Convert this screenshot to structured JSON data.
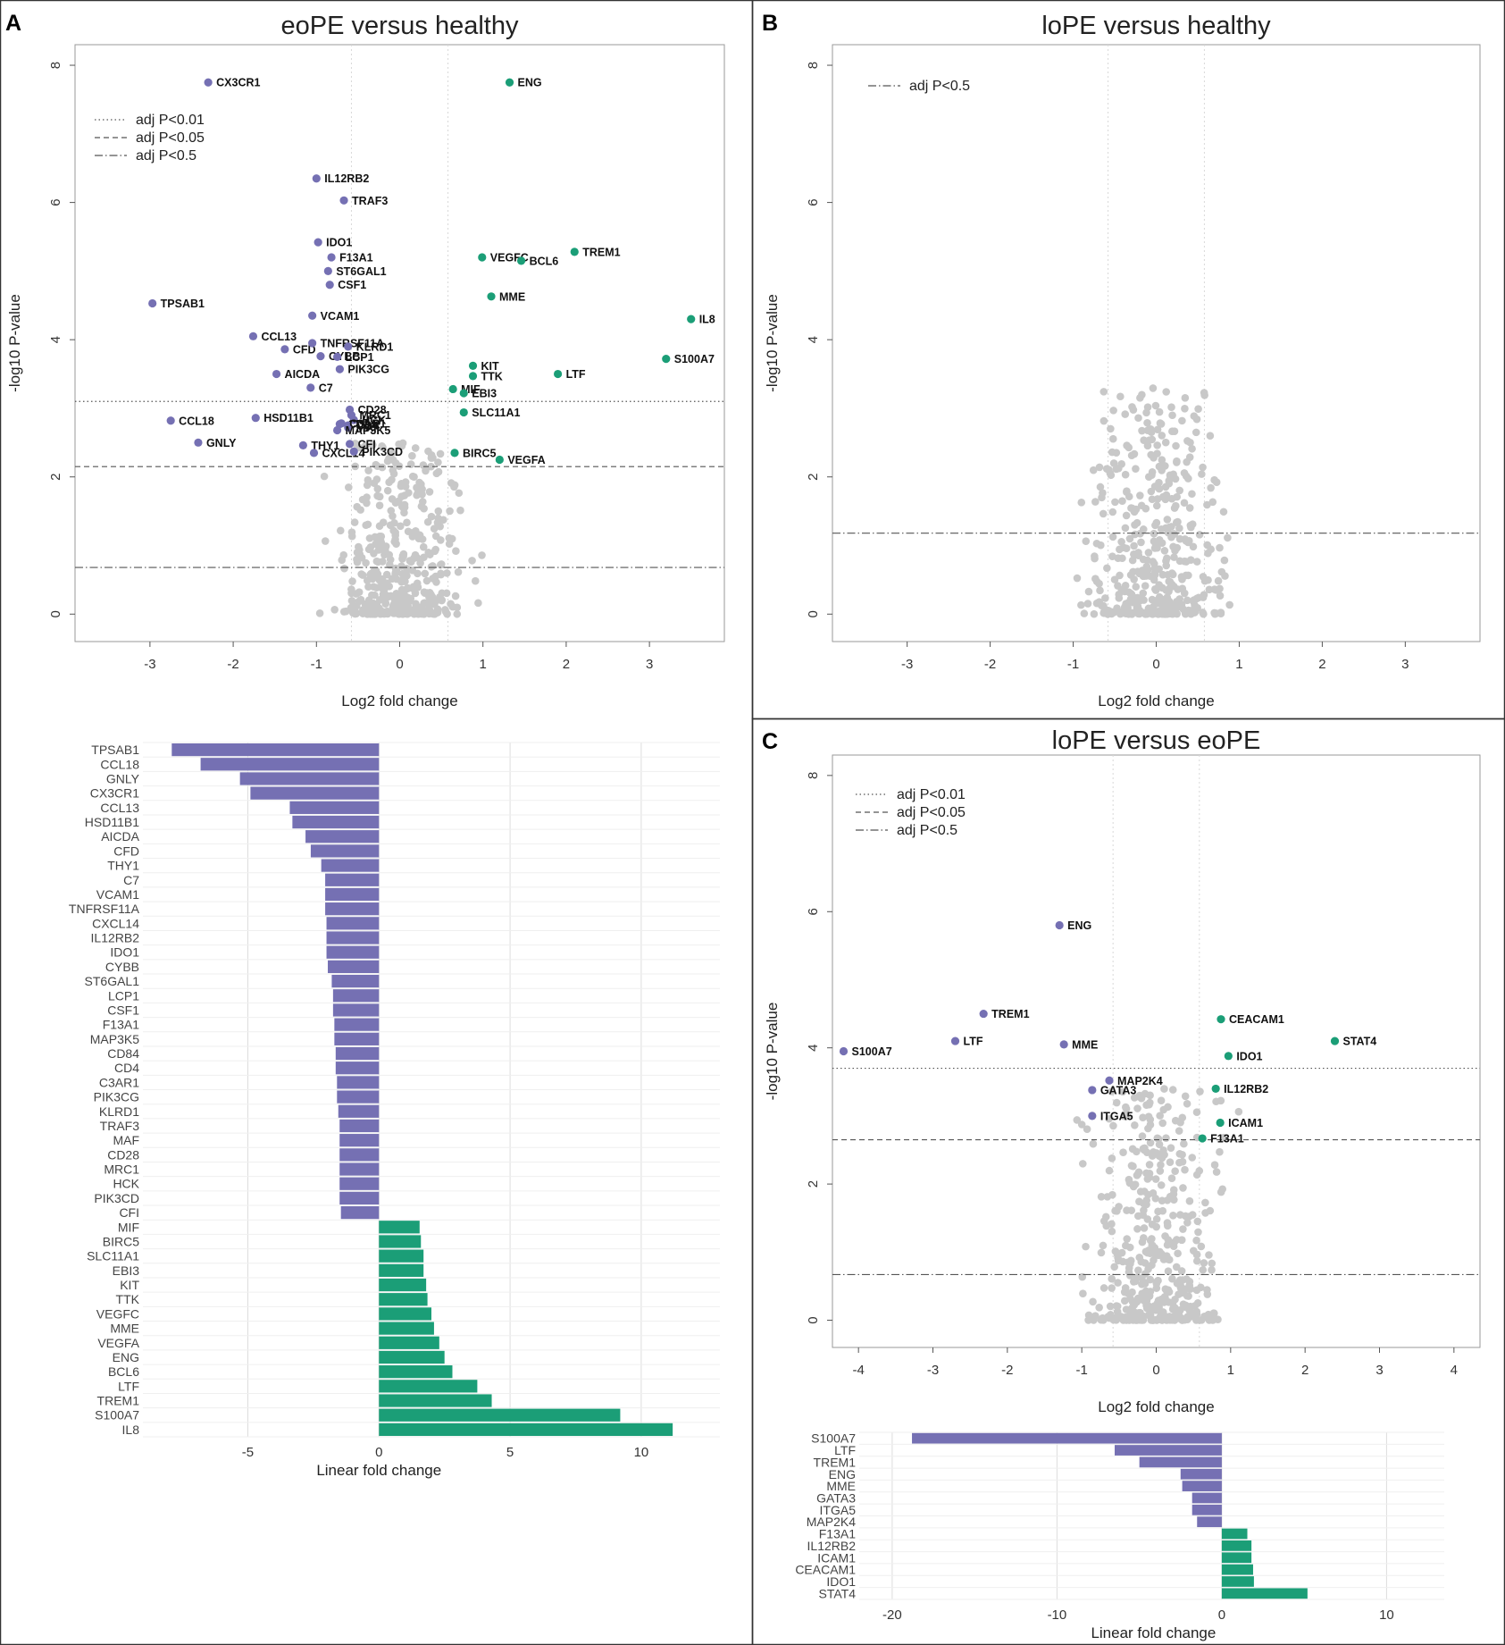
{
  "colors": {
    "down": "#7570b3",
    "up": "#1b9e77",
    "ns": "#c8c8c8",
    "panel_border": "#333333",
    "grid": "#dddddd"
  },
  "panel_letters": {
    "A": "A",
    "B": "B",
    "C": "C"
  },
  "chart_data": [
    {
      "id": "A_volcano",
      "type": "scatter",
      "title": "eoPE versus healthy",
      "xlabel": "Log2 fold change",
      "ylabel": "-log10 P-value",
      "xlim": [
        -3.9,
        3.9
      ],
      "ylim": [
        -0.4,
        8.3
      ],
      "xticks": [
        -3,
        -2,
        -1,
        0,
        1,
        2,
        3
      ],
      "yticks": [
        0,
        2,
        4,
        6,
        8
      ],
      "thresholds": [
        {
          "label": "adj P<0.01",
          "y": 3.1,
          "style": "dotted"
        },
        {
          "label": "adj P<0.05",
          "y": 2.15,
          "style": "dashed"
        },
        {
          "label": "adj P<0.5",
          "y": 0.68,
          "style": "dashdot"
        }
      ],
      "vlines": [
        -0.58,
        0.58
      ],
      "points": [
        {
          "gene": "CX3CR1",
          "x": -2.3,
          "y": 7.75,
          "dir": "down"
        },
        {
          "gene": "IL12RB2",
          "x": -1.0,
          "y": 6.35,
          "dir": "down"
        },
        {
          "gene": "TRAF3",
          "x": -0.67,
          "y": 6.03,
          "dir": "down"
        },
        {
          "gene": "IDO1",
          "x": -0.98,
          "y": 5.42,
          "dir": "down"
        },
        {
          "gene": "F13A1",
          "x": -0.82,
          "y": 5.2,
          "dir": "down"
        },
        {
          "gene": "ST6GAL1",
          "x": -0.86,
          "y": 5.0,
          "dir": "down"
        },
        {
          "gene": "CSF1",
          "x": -0.84,
          "y": 4.8,
          "dir": "down"
        },
        {
          "gene": "TPSAB1",
          "x": -2.97,
          "y": 4.53,
          "dir": "down"
        },
        {
          "gene": "VCAM1",
          "x": -1.05,
          "y": 4.35,
          "dir": "down"
        },
        {
          "gene": "CCL13",
          "x": -1.76,
          "y": 4.05,
          "dir": "down"
        },
        {
          "gene": "CFD",
          "x": -1.38,
          "y": 3.86,
          "dir": "down"
        },
        {
          "gene": "TNFRSF11A",
          "x": -1.05,
          "y": 3.95,
          "dir": "down"
        },
        {
          "gene": "CYBB",
          "x": -0.95,
          "y": 3.76,
          "dir": "down"
        },
        {
          "gene": "KLRD1",
          "x": -0.62,
          "y": 3.9,
          "dir": "down"
        },
        {
          "gene": "LCP1",
          "x": -0.75,
          "y": 3.75,
          "dir": "down"
        },
        {
          "gene": "PIK3CG",
          "x": -0.72,
          "y": 3.57,
          "dir": "down"
        },
        {
          "gene": "AICDA",
          "x": -1.48,
          "y": 3.5,
          "dir": "down"
        },
        {
          "gene": "C7",
          "x": -1.07,
          "y": 3.3,
          "dir": "down"
        },
        {
          "gene": "CD28",
          "x": -0.6,
          "y": 2.98,
          "dir": "down"
        },
        {
          "gene": "MRC1",
          "x": -0.58,
          "y": 2.9,
          "dir": "down"
        },
        {
          "gene": "HCK",
          "x": -0.55,
          "y": 2.83,
          "dir": "down"
        },
        {
          "gene": "CCL18",
          "x": -2.75,
          "y": 2.82,
          "dir": "down"
        },
        {
          "gene": "HSD11B1",
          "x": -1.73,
          "y": 2.86,
          "dir": "down"
        },
        {
          "gene": "CD84",
          "x": -0.72,
          "y": 2.77,
          "dir": "down"
        },
        {
          "gene": "CD4",
          "x": -0.62,
          "y": 2.75,
          "dir": "down"
        },
        {
          "gene": "MAF",
          "x": -0.62,
          "y": 2.72,
          "dir": "down"
        },
        {
          "gene": "MAP3K5",
          "x": -0.75,
          "y": 2.68,
          "dir": "down"
        },
        {
          "gene": "C3AR1",
          "x": -0.7,
          "y": 2.78,
          "dir": "down"
        },
        {
          "gene": "GNLY",
          "x": -2.42,
          "y": 2.5,
          "dir": "down"
        },
        {
          "gene": "THY1",
          "x": -1.16,
          "y": 2.46,
          "dir": "down"
        },
        {
          "gene": "CFI",
          "x": -0.6,
          "y": 2.48,
          "dir": "down"
        },
        {
          "gene": "CXCL14",
          "x": -1.03,
          "y": 2.35,
          "dir": "down"
        },
        {
          "gene": "PIK3CD",
          "x": -0.55,
          "y": 2.37,
          "dir": "down"
        },
        {
          "gene": "ENG",
          "x": 1.32,
          "y": 7.75,
          "dir": "up"
        },
        {
          "gene": "TREM1",
          "x": 2.1,
          "y": 5.28,
          "dir": "up"
        },
        {
          "gene": "VEGFC",
          "x": 0.99,
          "y": 5.2,
          "dir": "up"
        },
        {
          "gene": "BCL6",
          "x": 1.46,
          "y": 5.15,
          "dir": "up"
        },
        {
          "gene": "MME",
          "x": 1.1,
          "y": 4.63,
          "dir": "up"
        },
        {
          "gene": "IL8",
          "x": 3.5,
          "y": 4.3,
          "dir": "up"
        },
        {
          "gene": "S100A7",
          "x": 3.2,
          "y": 3.72,
          "dir": "up"
        },
        {
          "gene": "KIT",
          "x": 0.88,
          "y": 3.62,
          "dir": "up"
        },
        {
          "gene": "TTK",
          "x": 0.88,
          "y": 3.47,
          "dir": "up"
        },
        {
          "gene": "LTF",
          "x": 1.9,
          "y": 3.5,
          "dir": "up"
        },
        {
          "gene": "MIF",
          "x": 0.64,
          "y": 3.28,
          "dir": "up"
        },
        {
          "gene": "EBI3",
          "x": 0.77,
          "y": 3.22,
          "dir": "up"
        },
        {
          "gene": "SLC11A1",
          "x": 0.77,
          "y": 2.94,
          "dir": "up"
        },
        {
          "gene": "BIRC5",
          "x": 0.66,
          "y": 2.35,
          "dir": "up"
        },
        {
          "gene": "VEGFA",
          "x": 1.2,
          "y": 2.25,
          "dir": "up"
        }
      ]
    },
    {
      "id": "B_volcano",
      "type": "scatter",
      "title": "loPE versus healthy",
      "xlabel": "Log2 fold change",
      "ylabel": "-log10 P-value",
      "xlim": [
        -3.9,
        3.9
      ],
      "ylim": [
        -0.4,
        8.3
      ],
      "xticks": [
        -3,
        -2,
        -1,
        0,
        1,
        2,
        3
      ],
      "yticks": [
        0,
        2,
        4,
        6,
        8
      ],
      "thresholds": [
        {
          "label": "adj P<0.5",
          "y": 1.18,
          "style": "dashdot"
        }
      ],
      "vlines": [
        -0.58,
        0.58
      ],
      "points": []
    },
    {
      "id": "C_volcano",
      "type": "scatter",
      "title": "loPE versus eoPE",
      "xlabel": "Log2 fold change",
      "ylabel": "-log10 P-value",
      "xlim": [
        -4.35,
        4.35
      ],
      "ylim": [
        -0.4,
        8.3
      ],
      "xticks": [
        -4,
        -3,
        -2,
        -1,
        0,
        1,
        2,
        3,
        4
      ],
      "yticks": [
        0,
        2,
        4,
        6,
        8
      ],
      "thresholds": [
        {
          "label": "adj P<0.01",
          "y": 3.7,
          "style": "dotted"
        },
        {
          "label": "adj P<0.05",
          "y": 2.65,
          "style": "dashed"
        },
        {
          "label": "adj P<0.5",
          "y": 0.67,
          "style": "dashdot"
        }
      ],
      "vlines": [
        -0.58,
        0.58
      ],
      "points": [
        {
          "gene": "ENG",
          "x": -1.3,
          "y": 5.8,
          "dir": "down"
        },
        {
          "gene": "TREM1",
          "x": -2.32,
          "y": 4.5,
          "dir": "down"
        },
        {
          "gene": "LTF",
          "x": -2.7,
          "y": 4.1,
          "dir": "down"
        },
        {
          "gene": "S100A7",
          "x": -4.2,
          "y": 3.95,
          "dir": "down"
        },
        {
          "gene": "MME",
          "x": -1.24,
          "y": 4.05,
          "dir": "down"
        },
        {
          "gene": "MAP2K4",
          "x": -0.63,
          "y": 3.52,
          "dir": "down"
        },
        {
          "gene": "GATA3",
          "x": -0.86,
          "y": 3.38,
          "dir": "down"
        },
        {
          "gene": "ITGA5",
          "x": -0.86,
          "y": 3.0,
          "dir": "down"
        },
        {
          "gene": "CEACAM1",
          "x": 0.87,
          "y": 4.42,
          "dir": "up"
        },
        {
          "gene": "STAT4",
          "x": 2.4,
          "y": 4.1,
          "dir": "up"
        },
        {
          "gene": "IDO1",
          "x": 0.97,
          "y": 3.88,
          "dir": "up"
        },
        {
          "gene": "IL12RB2",
          "x": 0.8,
          "y": 3.4,
          "dir": "up"
        },
        {
          "gene": "ICAM1",
          "x": 0.86,
          "y": 2.9,
          "dir": "up"
        },
        {
          "gene": "F13A1",
          "x": 0.62,
          "y": 2.67,
          "dir": "up"
        }
      ]
    },
    {
      "id": "A_bars",
      "type": "bar",
      "orientation": "horizontal",
      "xlabel": "Linear fold change",
      "xlim": [
        -9,
        13
      ],
      "xticks": [
        -5,
        0,
        5,
        10
      ],
      "categories": [
        "TPSAB1",
        "CCL18",
        "GNLY",
        "CX3CR1",
        "CCL13",
        "HSD11B1",
        "AICDA",
        "CFD",
        "THY1",
        "C7",
        "VCAM1",
        "TNFRSF11A",
        "CXCL14",
        "IL12RB2",
        "IDO1",
        "CYBB",
        "ST6GAL1",
        "LCP1",
        "CSF1",
        "F13A1",
        "MAP3K5",
        "CD84",
        "CD4",
        "C3AR1",
        "PIK3CG",
        "KLRD1",
        "TRAF3",
        "MAF",
        "CD28",
        "MRC1",
        "HCK",
        "PIK3CD",
        "CFI",
        "MIF",
        "BIRC5",
        "SLC11A1",
        "EBI3",
        "KIT",
        "TTK",
        "VEGFC",
        "MME",
        "VEGFA",
        "ENG",
        "BCL6",
        "LTF",
        "TREM1",
        "S100A7",
        "IL8"
      ],
      "values": [
        -7.9,
        -6.8,
        -5.3,
        -4.9,
        -3.4,
        -3.3,
        -2.8,
        -2.6,
        -2.2,
        -2.05,
        -2.05,
        -2.05,
        -2.0,
        -2.0,
        -2.0,
        -1.95,
        -1.8,
        -1.75,
        -1.75,
        -1.7,
        -1.7,
        -1.65,
        -1.65,
        -1.6,
        -1.6,
        -1.55,
        -1.5,
        -1.5,
        -1.5,
        -1.5,
        -1.5,
        -1.5,
        -1.45,
        1.55,
        1.6,
        1.7,
        1.7,
        1.8,
        1.85,
        2.0,
        2.1,
        2.3,
        2.5,
        2.8,
        3.75,
        4.3,
        9.2,
        11.2
      ]
    },
    {
      "id": "C_bars",
      "type": "bar",
      "orientation": "horizontal",
      "xlabel": "Linear fold change",
      "xlim": [
        -22,
        13.5
      ],
      "xticks": [
        -20,
        -10,
        0,
        10
      ],
      "categories": [
        "S100A7",
        "LTF",
        "TREM1",
        "ENG",
        "MME",
        "GATA3",
        "ITGA5",
        "MAP2K4",
        "F13A1",
        "IL12RB2",
        "ICAM1",
        "CEACAM1",
        "IDO1",
        "STAT4"
      ],
      "values": [
        -18.8,
        -6.5,
        -5.0,
        -2.5,
        -2.4,
        -1.8,
        -1.8,
        -1.5,
        1.55,
        1.8,
        1.8,
        1.9,
        1.95,
        5.2
      ]
    }
  ]
}
